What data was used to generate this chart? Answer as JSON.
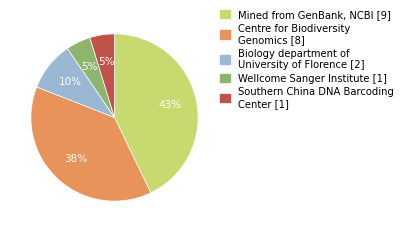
{
  "labels": [
    "Mined from GenBank, NCBI [9]",
    "Centre for Biodiversity\nGenomics [8]",
    "Biology department of\nUniversity of Florence [2]",
    "Wellcome Sanger Institute [1]",
    "Southern China DNA Barcoding\nCenter [1]"
  ],
  "values": [
    9,
    8,
    2,
    1,
    1
  ],
  "colors": [
    "#c8d96f",
    "#e8935a",
    "#9ab7d3",
    "#8db56e",
    "#c0524a"
  ],
  "startangle": 90,
  "background_color": "#ffffff",
  "text_color": "#ffffff",
  "legend_fontsize": 7.2,
  "autopct_fontsize": 7.5
}
